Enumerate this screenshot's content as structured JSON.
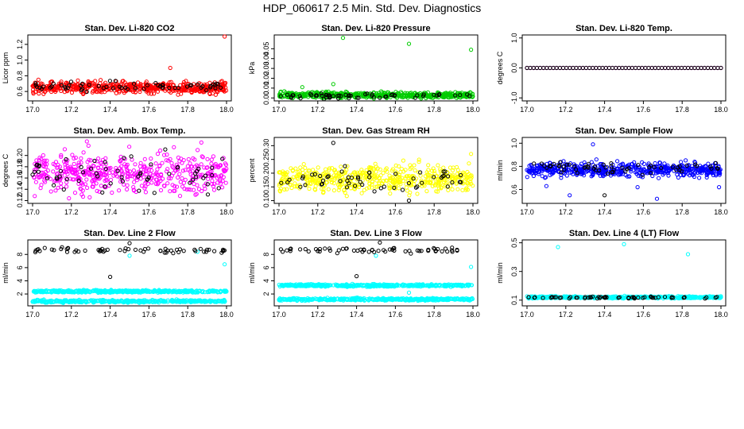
{
  "figure": {
    "title": "HDP_060617  2.5 Min. Std. Dev. Diagnostics"
  },
  "chart_data": [
    {
      "type": "scatter",
      "title": "Stan. Dev. Li-820 CO2",
      "ylabel": "Licor ppm",
      "xlim": [
        17.0,
        18.0
      ],
      "ylim": [
        0.48,
        1.32
      ],
      "xticks": [
        "17.0",
        "17.2",
        "17.4",
        "17.6",
        "17.8",
        "18.0"
      ],
      "yticks": [
        {
          "v": 0.6,
          "label": "0.6"
        },
        {
          "v": 0.8,
          "label": "0.8"
        },
        {
          "v": 1.0,
          "label": "1.0"
        },
        {
          "v": 1.2,
          "label": "1.2"
        }
      ],
      "series": [
        {
          "color": "#ff0000",
          "points": 520,
          "base": 0.65,
          "spread": 0.06,
          "outliers": [
            [
              17.71,
              0.9
            ],
            [
              17.99,
              1.3
            ],
            [
              17.03,
              0.75
            ]
          ]
        },
        {
          "color": "#000000",
          "points": 60,
          "base": 0.66,
          "spread": 0.05,
          "outliers": []
        }
      ]
    },
    {
      "type": "scatter",
      "title": "Stan. Dev. Li-820 Pressure",
      "ylabel": "kPa",
      "xlim": [
        17.0,
        18.0
      ],
      "ylim": [
        -0.003,
        0.064
      ],
      "xticks": [
        "17.0",
        "17.2",
        "17.4",
        "17.6",
        "17.8",
        "18.0"
      ],
      "yticks": [
        {
          "v": 0.0,
          "label": "0.00"
        },
        {
          "v": 0.01,
          "label": "0.01"
        },
        {
          "v": 0.02,
          "label": "0.02"
        },
        {
          "v": 0.03,
          "label": "0.03"
        },
        {
          "v": 0.04,
          "label": "0.04"
        },
        {
          "v": 0.05,
          "label": "0.05"
        }
      ],
      "series": [
        {
          "color": "#00cc00",
          "points": 520,
          "base": 0.003,
          "spread": 0.0025,
          "outliers": [
            [
              17.33,
              0.061
            ],
            [
              17.67,
              0.055
            ],
            [
              17.99,
              0.049
            ],
            [
              17.28,
              0.014
            ],
            [
              17.12,
              0.011
            ]
          ]
        },
        {
          "color": "#000000",
          "points": 60,
          "base": 0.002,
          "spread": 0.002,
          "outliers": []
        }
      ]
    },
    {
      "type": "scatter",
      "title": "Stan. Dev. Li-820 Temp.",
      "ylabel": "degrees C",
      "xlim": [
        17.0,
        18.0
      ],
      "ylim": [
        -1.1,
        1.1
      ],
      "xticks": [
        "17.0",
        "17.2",
        "17.4",
        "17.6",
        "17.8",
        "18.0"
      ],
      "yticks": [
        {
          "v": -1.0,
          "label": "-1.0"
        },
        {
          "v": 0.0,
          "label": "0.0"
        },
        {
          "v": 1.0,
          "label": "1.0"
        }
      ],
      "series": [
        {
          "color": "#ff00ff",
          "points": 60,
          "base": 0.0,
          "spread": 0.0,
          "outliers": []
        },
        {
          "color": "#000000",
          "points": 60,
          "base": 0.0,
          "spread": 0.0,
          "outliers": []
        }
      ]
    },
    {
      "type": "scatter",
      "title": "Stan. Dev. Amb. Box Temp.",
      "ylabel": "degrees C",
      "xlim": [
        17.0,
        18.0
      ],
      "ylim": [
        0.115,
        0.232
      ],
      "xticks": [
        "17.0",
        "17.2",
        "17.4",
        "17.6",
        "17.8",
        "18.0"
      ],
      "yticks": [
        {
          "v": 0.12,
          "label": "0.12"
        },
        {
          "v": 0.14,
          "label": "0.14"
        },
        {
          "v": 0.16,
          "label": "0.16"
        },
        {
          "v": 0.18,
          "label": "0.18"
        },
        {
          "v": 0.2,
          "label": "0.20"
        }
      ],
      "series": [
        {
          "color": "#ff00ff",
          "points": 480,
          "base": 0.168,
          "spread": 0.028,
          "outliers": [
            [
              17.28,
              0.225
            ],
            [
              17.87,
              0.223
            ]
          ]
        },
        {
          "color": "#000000",
          "points": 60,
          "base": 0.168,
          "spread": 0.025,
          "outliers": []
        }
      ]
    },
    {
      "type": "scatter",
      "title": "Stan. Dev. Gas Stream RH",
      "ylabel": "percent",
      "xlim": [
        17.0,
        18.0
      ],
      "ylim": [
        0.09,
        0.33
      ],
      "xticks": [
        "17.0",
        "17.2",
        "17.4",
        "17.6",
        "17.8",
        "18.0"
      ],
      "yticks": [
        {
          "v": 0.1,
          "label": "0.10"
        },
        {
          "v": 0.15,
          "label": "0.15"
        },
        {
          "v": 0.2,
          "label": "0.20"
        },
        {
          "v": 0.25,
          "label": "0.25"
        },
        {
          "v": 0.3,
          "label": "0.30"
        }
      ],
      "series": [
        {
          "color": "#ffff00",
          "points": 520,
          "base": 0.18,
          "spread": 0.04,
          "outliers": [
            [
              17.99,
              0.27
            ]
          ]
        },
        {
          "color": "#000000",
          "points": 55,
          "base": 0.18,
          "spread": 0.035,
          "outliers": [
            [
              17.28,
              0.31
            ],
            [
              17.67,
              0.1
            ]
          ]
        }
      ]
    },
    {
      "type": "scatter",
      "title": "Stan. Dev. Sample Flow",
      "ylabel": "ml/min",
      "xlim": [
        17.0,
        18.0
      ],
      "ylim": [
        0.48,
        1.05
      ],
      "xticks": [
        "17.0",
        "17.2",
        "17.4",
        "17.6",
        "17.8",
        "18.0"
      ],
      "yticks": [
        {
          "v": 0.6,
          "label": "0.6"
        },
        {
          "v": 0.8,
          "label": "0.8"
        },
        {
          "v": 1.0,
          "label": "1.0"
        }
      ],
      "series": [
        {
          "color": "#0000ff",
          "points": 520,
          "base": 0.77,
          "spread": 0.05,
          "outliers": [
            [
              17.34,
              0.99
            ],
            [
              17.22,
              0.55
            ],
            [
              17.67,
              0.52
            ],
            [
              17.99,
              0.62
            ],
            [
              17.57,
              0.62
            ],
            [
              17.1,
              0.63
            ]
          ]
        },
        {
          "color": "#000000",
          "points": 60,
          "base": 0.79,
          "spread": 0.04,
          "outliers": [
            [
              17.4,
              0.55
            ]
          ]
        }
      ]
    },
    {
      "type": "scatter",
      "title": "Stan. Dev. Line 2 Flow",
      "ylabel": "ml/min",
      "xlim": [
        17.0,
        18.0
      ],
      "ylim": [
        0.2,
        10.2
      ],
      "xticks": [
        "17.0",
        "17.2",
        "17.4",
        "17.6",
        "17.8",
        "18.0"
      ],
      "yticks": [
        {
          "v": 2,
          "label": "2"
        },
        {
          "v": 4,
          "label": "4"
        },
        {
          "v": 6,
          "label": "6"
        },
        {
          "v": 8,
          "label": "8"
        }
      ],
      "series": [
        {
          "color": "#00ffff",
          "points": 420,
          "base": 2.4,
          "spread": 0.15,
          "outliers": []
        },
        {
          "color": "#00ffff",
          "points": 420,
          "base": 0.9,
          "spread": 0.15,
          "outliers": [
            [
              17.99,
              6.5
            ],
            [
              17.5,
              7.8
            ],
            [
              17.85,
              8.4
            ]
          ]
        },
        {
          "color": "#000000",
          "points": 60,
          "base": 8.6,
          "spread": 0.35,
          "outliers": [
            [
              17.4,
              4.6
            ],
            [
              17.5,
              9.7
            ]
          ]
        }
      ]
    },
    {
      "type": "scatter",
      "title": "Stan. Dev. Line 3 Flow",
      "ylabel": "ml/min",
      "xlim": [
        17.0,
        18.0
      ],
      "ylim": [
        0.2,
        10.2
      ],
      "xticks": [
        "17.0",
        "17.2",
        "17.4",
        "17.6",
        "17.8",
        "18.0"
      ],
      "yticks": [
        {
          "v": 2,
          "label": "2"
        },
        {
          "v": 4,
          "label": "4"
        },
        {
          "v": 6,
          "label": "6"
        },
        {
          "v": 8,
          "label": "8"
        }
      ],
      "series": [
        {
          "color": "#00ffff",
          "points": 420,
          "base": 3.3,
          "spread": 0.15,
          "outliers": []
        },
        {
          "color": "#00ffff",
          "points": 420,
          "base": 1.2,
          "spread": 0.15,
          "outliers": [
            [
              17.99,
              6.1
            ],
            [
              17.67,
              2.2
            ],
            [
              17.5,
              7.8
            ]
          ]
        },
        {
          "color": "#000000",
          "points": 60,
          "base": 8.6,
          "spread": 0.35,
          "outliers": [
            [
              17.4,
              4.7
            ],
            [
              17.52,
              9.8
            ]
          ]
        }
      ]
    },
    {
      "type": "scatter",
      "title": "Stan. Dev. Line 4 (LT) Flow",
      "ylabel": "ml/min",
      "xlim": [
        17.0,
        18.0
      ],
      "ylim": [
        0.06,
        0.52
      ],
      "xticks": [
        "17.0",
        "17.2",
        "17.4",
        "17.6",
        "17.8",
        "18.0"
      ],
      "yticks": [
        {
          "v": 0.1,
          "label": "0.1"
        },
        {
          "v": 0.3,
          "label": "0.3"
        },
        {
          "v": 0.5,
          "label": "0.5"
        }
      ],
      "series": [
        {
          "color": "#00ffff",
          "points": 480,
          "base": 0.12,
          "spread": 0.006,
          "outliers": [
            [
              17.16,
              0.47
            ],
            [
              17.5,
              0.49
            ],
            [
              17.83,
              0.42
            ]
          ]
        },
        {
          "color": "#000000",
          "points": 60,
          "base": 0.118,
          "spread": 0.005,
          "outliers": []
        }
      ]
    }
  ]
}
